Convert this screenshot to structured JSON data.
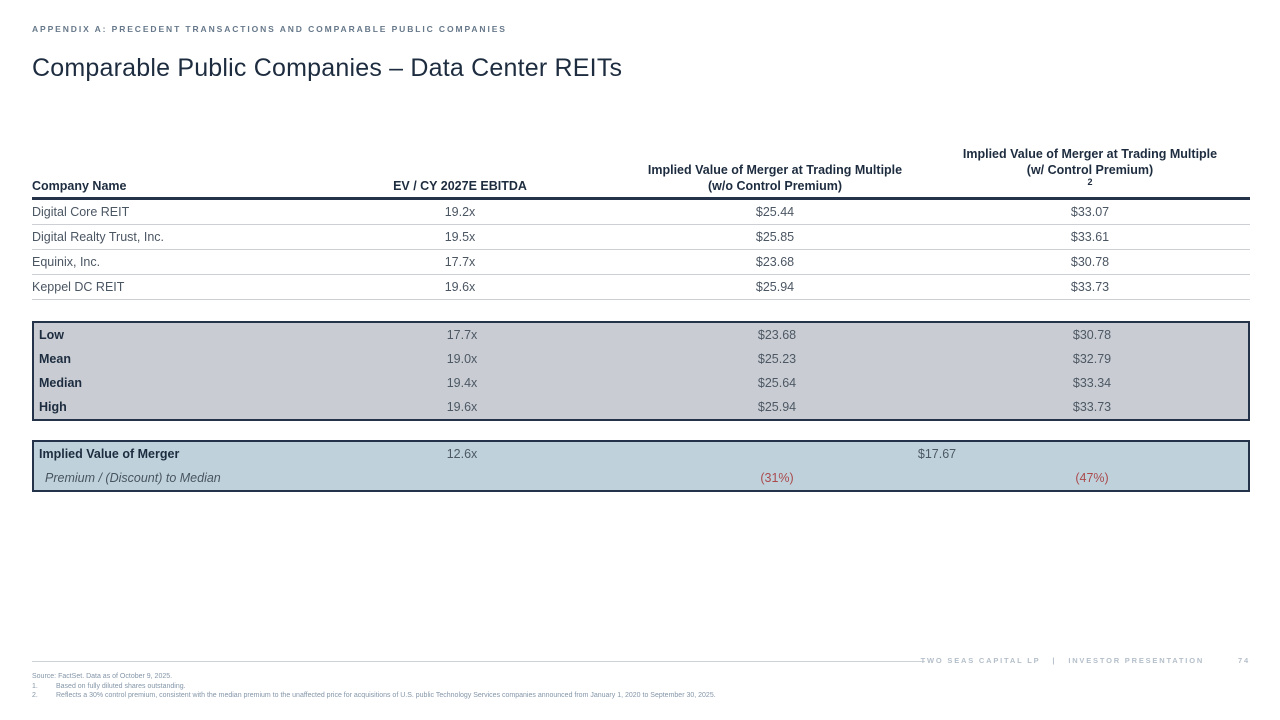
{
  "header": {
    "eyebrow": "APPENDIX A: PRECEDENT TRANSACTIONS AND COMPARABLE PUBLIC COMPANIES",
    "title": "Comparable Public Companies – Data Center REITs"
  },
  "table": {
    "columns": [
      {
        "label": "Company Name"
      },
      {
        "label": "EV / CY 2027E EBITDA"
      },
      {
        "line1": "Implied Value of Merger at Trading Multiple",
        "line2": "(w/o Control Premium)"
      },
      {
        "line1": "Implied Value of Merger at Trading Multiple",
        "line2": "(w/ Control Premium)",
        "sup": "2"
      }
    ],
    "companies": [
      {
        "name": "Digital Core REIT",
        "ebitda": "19.2x",
        "wo": "$25.44",
        "w": "$33.07"
      },
      {
        "name": "Digital Realty Trust, Inc.",
        "ebitda": "19.5x",
        "wo": "$25.85",
        "w": "$33.61"
      },
      {
        "name": "Equinix, Inc.",
        "ebitda": "17.7x",
        "wo": "$23.68",
        "w": "$30.78"
      },
      {
        "name": "Keppel DC REIT",
        "ebitda": "19.6x",
        "wo": "$25.94",
        "w": "$33.73"
      }
    ],
    "stats": [
      {
        "label": "Low",
        "ebitda": "17.7x",
        "wo": "$23.68",
        "w": "$30.78"
      },
      {
        "label": "Mean",
        "ebitda": "19.0x",
        "wo": "$25.23",
        "w": "$32.79"
      },
      {
        "label": "Median",
        "ebitda": "19.4x",
        "wo": "$25.64",
        "w": "$33.34"
      },
      {
        "label": "High",
        "ebitda": "19.6x",
        "wo": "$25.94",
        "w": "$33.73"
      }
    ],
    "merger": {
      "label": "Implied Value of Merger",
      "ebitda": "12.6x",
      "value": "$17.67",
      "premium_label": "Premium / (Discount) to Median",
      "premium_wo": "(31%)",
      "premium_w": "(47%)"
    }
  },
  "footnotes": {
    "source": "Source: FactSet. Data as of October 9, 2025.",
    "notes": [
      {
        "num": "1.",
        "text": "Based on fully diluted shares outstanding."
      },
      {
        "num": "2.",
        "text": "Reflects a 30% control premium, consistent with the median premium to the unaffected price for acquisitions of U.S. public Technology Services companies announced from January 1, 2020 to September 30, 2025."
      }
    ]
  },
  "footer": {
    "brand": "TWO SEAS CAPITAL LP",
    "divider": "|",
    "doc_type": "INVESTOR PRESENTATION",
    "page": "74"
  },
  "colors": {
    "accent_navy": "#24334a",
    "stats_box_gray": "#c9cdd3",
    "merger_box_blue": "#bfd2dc",
    "negative_red": "#aa4a4d"
  }
}
